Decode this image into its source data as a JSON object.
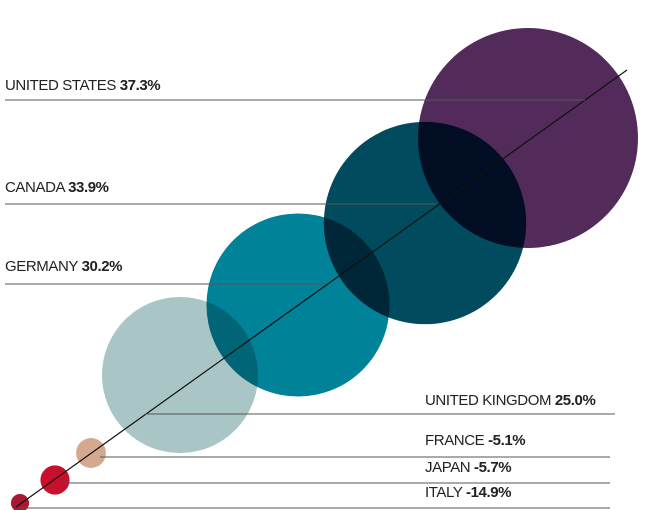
{
  "chart_data": {
    "type": "bubble",
    "categories": [
      "UNITED STATES",
      "CANADA",
      "GERMANY",
      "UNITED KINGDOM",
      "FRANCE",
      "JAPAN",
      "ITALY"
    ],
    "values": [
      37.3,
      33.9,
      30.2,
      25.0,
      -5.1,
      -5.7,
      -14.9
    ],
    "value_labels": [
      "37.3%",
      "33.9%",
      "30.2%",
      "25.0%",
      "-5.1%",
      "-5.7%",
      "-14.9%"
    ],
    "colors": [
      "#522b5b",
      "#004b5d",
      "#008299",
      "#a9c5c5",
      "#d4a98f",
      "#c8102e",
      "#a6192e"
    ]
  }
}
